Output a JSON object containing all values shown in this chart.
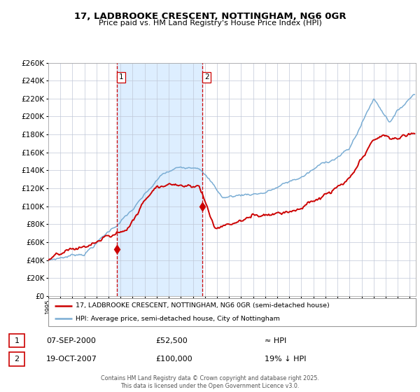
{
  "title_line1": "17, LADBROOKE CRESCENT, NOTTINGHAM, NG6 0GR",
  "title_line2": "Price paid vs. HM Land Registry's House Price Index (HPI)",
  "legend_red": "17, LADBROOKE CRESCENT, NOTTINGHAM, NG6 0GR (semi-detached house)",
  "legend_blue": "HPI: Average price, semi-detached house, City of Nottingham",
  "annotation1_date": "07-SEP-2000",
  "annotation1_price": "£52,500",
  "annotation1_hpi": "≈ HPI",
  "annotation2_date": "19-OCT-2007",
  "annotation2_price": "£100,000",
  "annotation2_hpi": "19% ↓ HPI",
  "footer": "Contains HM Land Registry data © Crown copyright and database right 2025.\nThis data is licensed under the Open Government Licence v3.0.",
  "ylim": [
    0,
    260000
  ],
  "ytick_step": 20000,
  "sale1_year": 2000.69,
  "sale1_price": 52500,
  "sale2_year": 2007.8,
  "sale2_price": 100000,
  "red_color": "#cc0000",
  "blue_color": "#7aadd4",
  "bg_color": "#ddeeff",
  "grid_color": "#c0c8d8",
  "vline_color": "#cc0000",
  "background_chart": "#ffffff"
}
